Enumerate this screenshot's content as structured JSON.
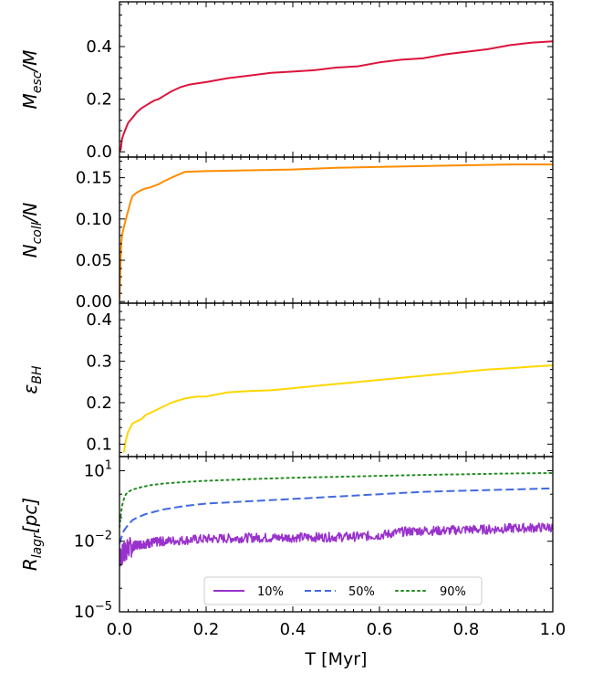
{
  "chart_data": [
    {
      "type": "line",
      "ylabel": "M_esc/M",
      "ylabel_main": "M",
      "ylabel_sub": "esc",
      "ylabel_tail": "/M",
      "xlim": [
        0.0,
        1.0
      ],
      "ylim": [
        -0.02,
        0.57
      ],
      "yticks": [
        0.0,
        0.2,
        0.4
      ],
      "ytick_labels": [
        "0.0",
        "0.2",
        "0.4"
      ],
      "series": [
        {
          "color": "#dc143c",
          "style": "solid",
          "x": [
            0.0,
            0.003,
            0.006,
            0.01,
            0.015,
            0.02,
            0.03,
            0.04,
            0.05,
            0.06,
            0.07,
            0.08,
            0.09,
            0.1,
            0.12,
            0.14,
            0.16,
            0.18,
            0.2,
            0.25,
            0.3,
            0.35,
            0.4,
            0.45,
            0.5,
            0.55,
            0.6,
            0.65,
            0.7,
            0.75,
            0.8,
            0.85,
            0.9,
            0.95,
            1.0
          ],
          "y": [
            0.0,
            0.01,
            0.05,
            0.07,
            0.09,
            0.11,
            0.13,
            0.15,
            0.165,
            0.175,
            0.185,
            0.195,
            0.2,
            0.21,
            0.23,
            0.245,
            0.255,
            0.26,
            0.265,
            0.28,
            0.29,
            0.3,
            0.305,
            0.31,
            0.32,
            0.325,
            0.34,
            0.35,
            0.355,
            0.37,
            0.38,
            0.39,
            0.405,
            0.415,
            0.42
          ]
        }
      ]
    },
    {
      "type": "line",
      "ylabel": "N_coll/N",
      "ylabel_main": "N",
      "ylabel_sub": "coll",
      "ylabel_tail": "/N",
      "xlim": [
        0.0,
        1.0
      ],
      "ylim": [
        -0.002,
        0.175
      ],
      "yticks": [
        0.0,
        0.05,
        0.1,
        0.15
      ],
      "ytick_labels": [
        "0.00",
        "0.05",
        "0.10",
        "0.15"
      ],
      "series": [
        {
          "color": "#ff8c00",
          "style": "solid",
          "x": [
            0.0,
            0.002,
            0.004,
            0.006,
            0.008,
            0.01,
            0.015,
            0.02,
            0.025,
            0.03,
            0.04,
            0.05,
            0.06,
            0.07,
            0.08,
            0.09,
            0.1,
            0.12,
            0.15,
            0.2,
            0.3,
            0.4,
            0.5,
            0.6,
            0.7,
            0.8,
            0.9,
            1.0
          ],
          "y": [
            0.003,
            0.04,
            0.07,
            0.08,
            0.085,
            0.09,
            0.1,
            0.11,
            0.12,
            0.128,
            0.132,
            0.135,
            0.137,
            0.138,
            0.14,
            0.142,
            0.145,
            0.15,
            0.157,
            0.158,
            0.159,
            0.16,
            0.162,
            0.163,
            0.164,
            0.165,
            0.166,
            0.166
          ]
        }
      ]
    },
    {
      "type": "line",
      "ylabel": "ε_BH",
      "ylabel_main": "ε",
      "ylabel_sub": "BH",
      "ylabel_tail": "",
      "xlim": [
        0.0,
        1.0
      ],
      "ylim": [
        0.07,
        0.44
      ],
      "yticks": [
        0.1,
        0.2,
        0.3,
        0.4
      ],
      "ytick_labels": [
        "0.1",
        "0.2",
        "0.3",
        "0.4"
      ],
      "series": [
        {
          "color": "#ffd700",
          "style": "solid",
          "x": [
            0.01,
            0.015,
            0.02,
            0.03,
            0.04,
            0.05,
            0.06,
            0.08,
            0.1,
            0.12,
            0.15,
            0.18,
            0.2,
            0.25,
            0.3,
            0.35,
            0.4,
            0.45,
            0.5,
            0.55,
            0.6,
            0.65,
            0.7,
            0.75,
            0.8,
            0.85,
            0.9,
            0.95,
            1.0
          ],
          "y": [
            0.08,
            0.11,
            0.13,
            0.15,
            0.155,
            0.16,
            0.17,
            0.18,
            0.19,
            0.2,
            0.21,
            0.215,
            0.215,
            0.225,
            0.228,
            0.23,
            0.235,
            0.24,
            0.245,
            0.25,
            0.255,
            0.26,
            0.265,
            0.27,
            0.275,
            0.28,
            0.283,
            0.287,
            0.29
          ]
        }
      ]
    },
    {
      "type": "line",
      "ylabel": "R_lagr[pc]",
      "ylabel_main": "R",
      "ylabel_sub": "lagr",
      "ylabel_tail": "[pc]",
      "yscale": "log",
      "xlim": [
        0.0,
        1.0
      ],
      "ylim_log10": [
        -5,
        1.6
      ],
      "yticks_log10": [
        -5,
        -2,
        1
      ],
      "ytick_labels_base": [
        "10",
        "10",
        "10"
      ],
      "ytick_labels_exp": [
        "−5",
        "−2",
        "1"
      ],
      "legend": "lower center",
      "series": [
        {
          "name": "10%",
          "color": "#9932cc",
          "style": "solid",
          "noisy": true,
          "x": [
            0.0,
            0.01,
            0.02,
            0.04,
            0.06,
            0.08,
            0.1,
            0.15,
            0.2,
            0.25,
            0.3,
            0.35,
            0.4,
            0.45,
            0.5,
            0.55,
            0.6,
            0.65,
            0.7,
            0.75,
            0.8,
            0.85,
            0.9,
            0.95,
            1.0
          ],
          "log10_y": [
            -2.7,
            -2.5,
            -2.3,
            -2.15,
            -2.1,
            -2.05,
            -2.0,
            -1.95,
            -1.9,
            -1.88,
            -1.85,
            -1.85,
            -1.84,
            -1.83,
            -1.82,
            -1.8,
            -1.75,
            -1.6,
            -1.55,
            -1.55,
            -1.5,
            -1.5,
            -1.45,
            -1.43,
            -1.4
          ]
        },
        {
          "name": "50%",
          "color": "#4169e1",
          "style": "dashed",
          "x": [
            0.0,
            0.005,
            0.01,
            0.02,
            0.03,
            0.04,
            0.06,
            0.08,
            0.1,
            0.15,
            0.2,
            0.3,
            0.4,
            0.5,
            0.6,
            0.7,
            0.8,
            0.9,
            1.0
          ],
          "log10_y": [
            -2.1,
            -1.8,
            -1.55,
            -1.3,
            -1.1,
            -1.0,
            -0.85,
            -0.75,
            -0.65,
            -0.5,
            -0.4,
            -0.3,
            -0.2,
            -0.1,
            0.0,
            0.1,
            0.15,
            0.2,
            0.25
          ]
        },
        {
          "name": "90%",
          "color": "#228b22",
          "style": "dotted",
          "x": [
            0.0,
            0.003,
            0.006,
            0.01,
            0.015,
            0.02,
            0.03,
            0.05,
            0.07,
            0.1,
            0.15,
            0.2,
            0.3,
            0.4,
            0.5,
            0.6,
            0.7,
            0.8,
            0.9,
            1.0
          ],
          "log10_y": [
            -1.4,
            -0.9,
            -0.5,
            -0.2,
            0.0,
            0.1,
            0.2,
            0.3,
            0.38,
            0.45,
            0.52,
            0.57,
            0.64,
            0.7,
            0.74,
            0.78,
            0.82,
            0.85,
            0.88,
            0.9
          ]
        }
      ]
    }
  ],
  "xaxis": {
    "label": "T [Myr]",
    "ticks": [
      0.0,
      0.2,
      0.4,
      0.6,
      0.8,
      1.0
    ],
    "tick_labels": [
      "0.0",
      "0.2",
      "0.4",
      "0.6",
      "0.8",
      "1.0"
    ]
  }
}
